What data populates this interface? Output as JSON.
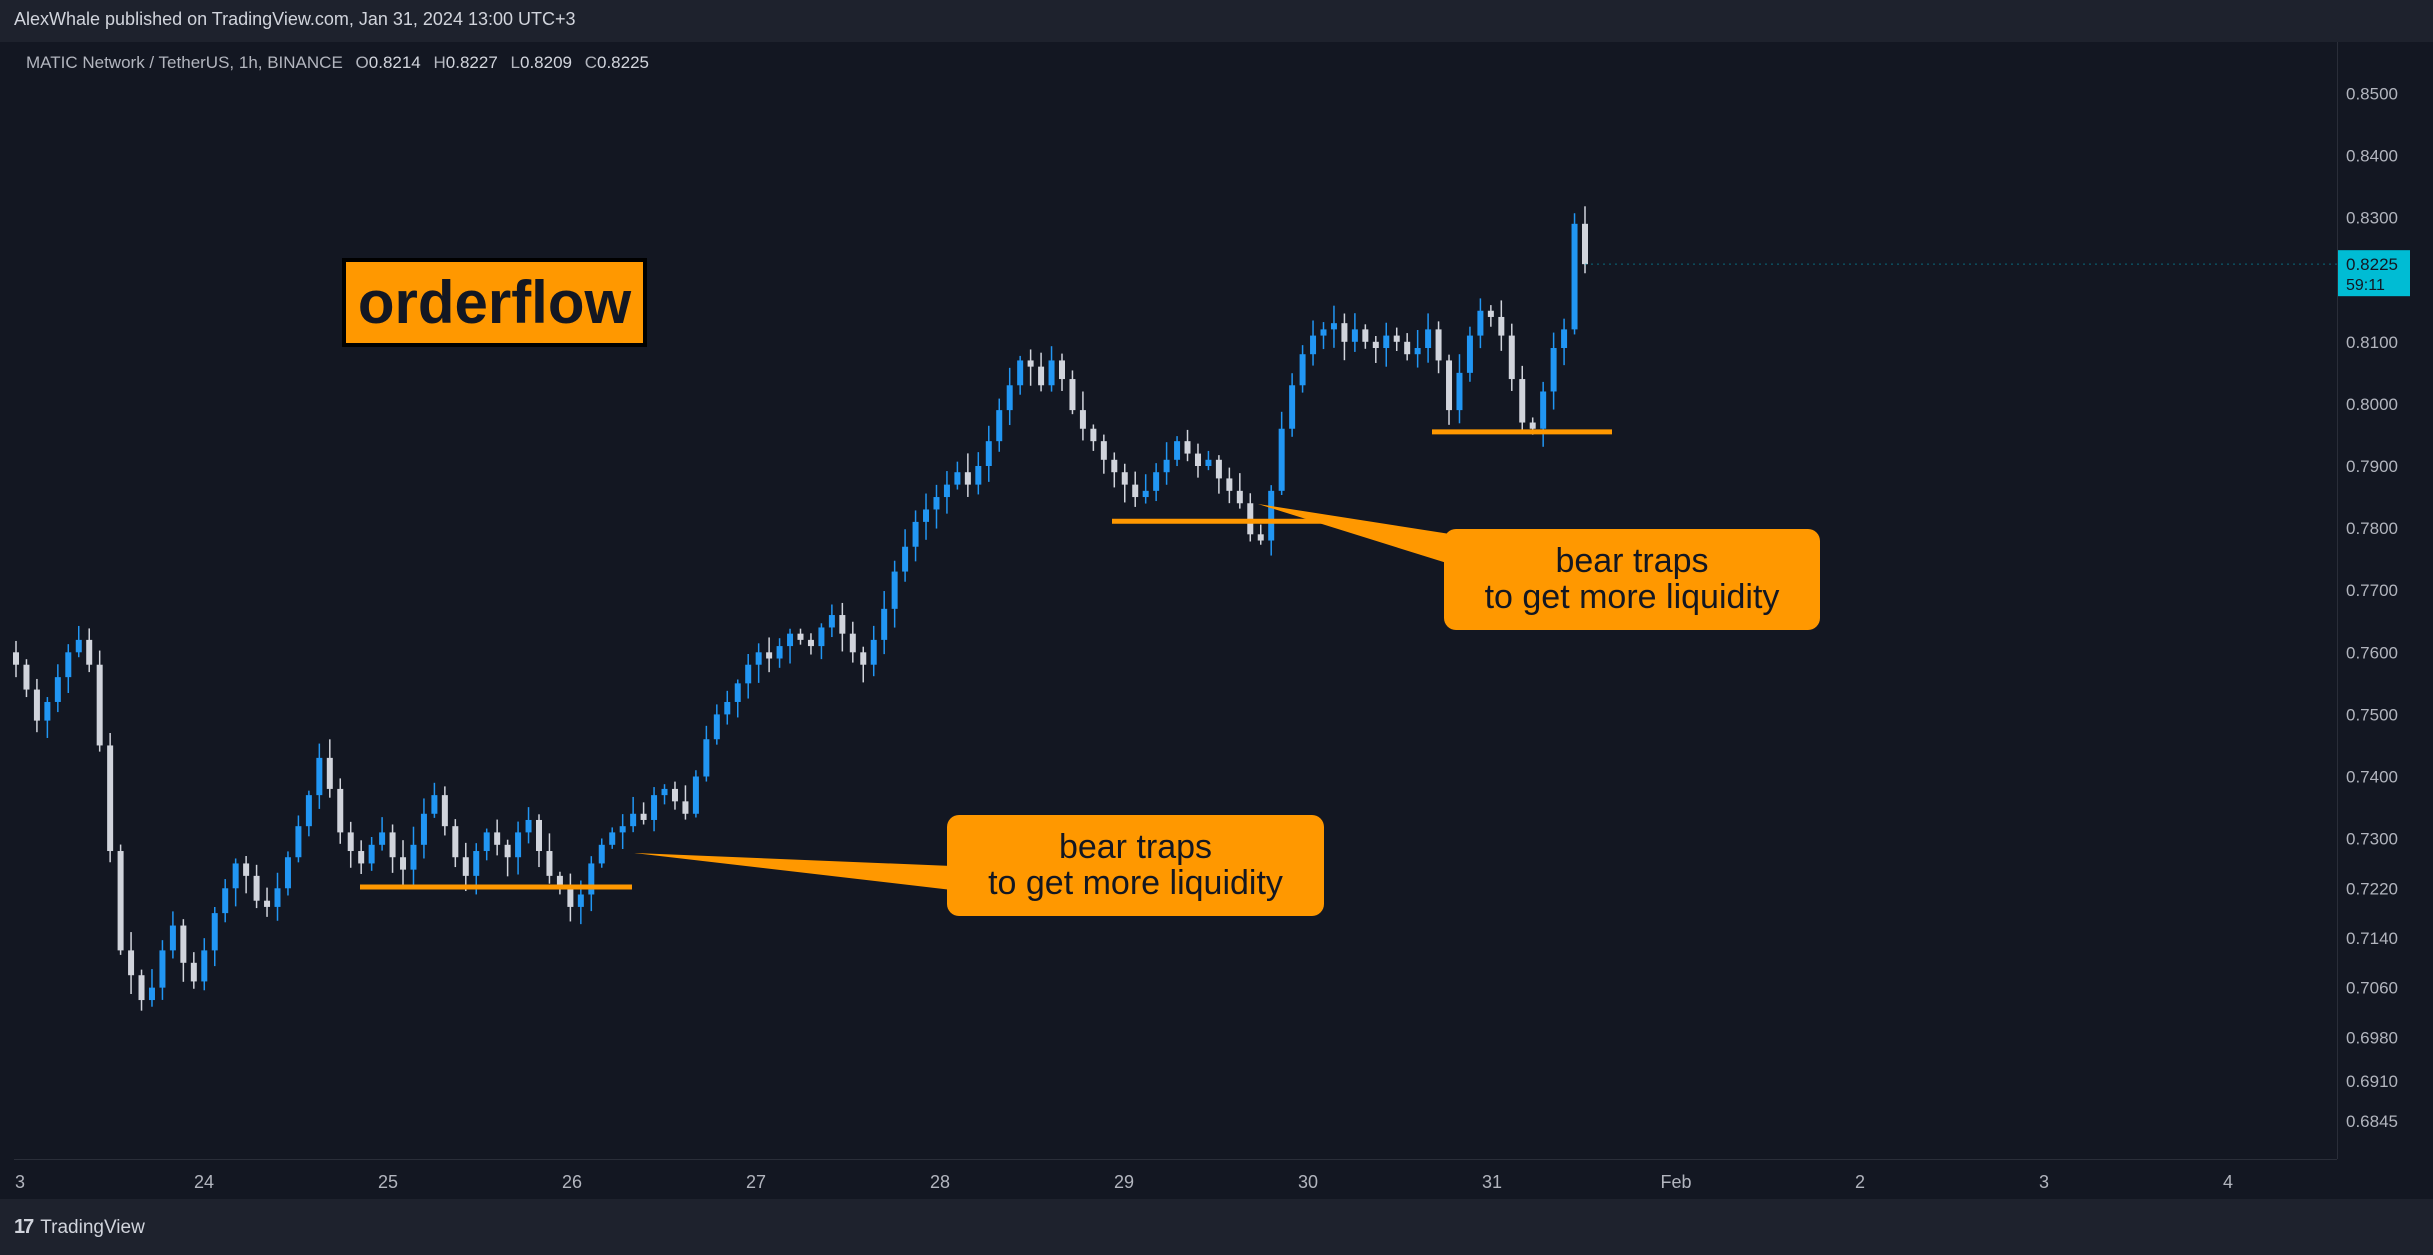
{
  "header": {
    "published_text": "AlexWhale published on TradingView.com, Jan 31, 2024 13:00 UTC+3"
  },
  "legend": {
    "symbol": "MATIC Network / TetherUS, 1h, BINANCE",
    "open_label": "O",
    "open": "0.8214",
    "high_label": "H",
    "high": "0.8227",
    "low_label": "L",
    "low": "0.8209",
    "close_label": "C",
    "close": "0.8225"
  },
  "annotations": {
    "title": "orderflow",
    "callout_1": [
      "bear traps",
      "to get more liquidity"
    ],
    "callout_2": [
      "bear traps",
      "to get more liquidity"
    ]
  },
  "price_axis": {
    "labels": [
      "0.8500",
      "0.8400",
      "0.8300",
      "0.8100",
      "0.8000",
      "0.7900",
      "0.7800",
      "0.7700",
      "0.7600",
      "0.7500",
      "0.7400",
      "0.7300",
      "0.7220",
      "0.7140",
      "0.7060",
      "0.6980",
      "0.6910",
      "0.6845"
    ],
    "current_price": "0.8225",
    "countdown": "59:11"
  },
  "time_axis": {
    "labels": [
      "3",
      "24",
      "25",
      "26",
      "27",
      "28",
      "29",
      "30",
      "31",
      "Feb",
      "2",
      "3",
      "4"
    ]
  },
  "footer": {
    "brand": "TradingView",
    "logo_mark": "17"
  },
  "colors": {
    "background": "#131722",
    "bull_candle": "#2196f3",
    "bear_candle": "#d1d4dc",
    "annotation": "#ff9800",
    "price_tag": "#00bcd4"
  },
  "chart_data": {
    "type": "candlestick",
    "title": "MATIC Network / TetherUS, 1h, BINANCE",
    "x_labels": [
      "3",
      "24",
      "25",
      "26",
      "27",
      "28",
      "29",
      "30",
      "31",
      "Feb",
      "2",
      "3",
      "4"
    ],
    "y_ticks": [
      0.85,
      0.84,
      0.83,
      0.81,
      0.8,
      0.79,
      0.78,
      0.77,
      0.76,
      0.75,
      0.74,
      0.73,
      0.722,
      0.714,
      0.706,
      0.698,
      0.691,
      0.6845
    ],
    "ylim": [
      0.6815,
      0.8515
    ],
    "last": {
      "open": 0.8214,
      "high": 0.8227,
      "low": 0.8209,
      "close": 0.8225
    },
    "path_closes": [
      0.758,
      0.754,
      0.749,
      0.752,
      0.756,
      0.76,
      0.762,
      0.758,
      0.745,
      0.728,
      0.712,
      0.708,
      0.704,
      0.706,
      0.712,
      0.716,
      0.71,
      0.707,
      0.712,
      0.718,
      0.722,
      0.726,
      0.724,
      0.72,
      0.719,
      0.722,
      0.727,
      0.732,
      0.737,
      0.743,
      0.738,
      0.731,
      0.728,
      0.726,
      0.729,
      0.731,
      0.727,
      0.725,
      0.729,
      0.734,
      0.737,
      0.732,
      0.727,
      0.724,
      0.728,
      0.731,
      0.729,
      0.727,
      0.731,
      0.733,
      0.728,
      0.724,
      0.722,
      0.719,
      0.721,
      0.726,
      0.729,
      0.731,
      0.732,
      0.734,
      0.733,
      0.737,
      0.738,
      0.736,
      0.734,
      0.74,
      0.746,
      0.75,
      0.752,
      0.755,
      0.758,
      0.76,
      0.759,
      0.761,
      0.763,
      0.762,
      0.761,
      0.764,
      0.766,
      0.763,
      0.76,
      0.758,
      0.762,
      0.767,
      0.773,
      0.777,
      0.781,
      0.783,
      0.785,
      0.787,
      0.789,
      0.787,
      0.79,
      0.794,
      0.799,
      0.803,
      0.807,
      0.806,
      0.803,
      0.807,
      0.804,
      0.799,
      0.796,
      0.794,
      0.791,
      0.789,
      0.787,
      0.785,
      0.786,
      0.789,
      0.791,
      0.794,
      0.792,
      0.79,
      0.791,
      0.788,
      0.786,
      0.784,
      0.779,
      0.778,
      0.786,
      0.796,
      0.803,
      0.808,
      0.811,
      0.812,
      0.813,
      0.81,
      0.812,
      0.81,
      0.809,
      0.811,
      0.81,
      0.808,
      0.809,
      0.812,
      0.807,
      0.799,
      0.805,
      0.811,
      0.815,
      0.814,
      0.811,
      0.804,
      0.797,
      0.796,
      0.802,
      0.809,
      0.812,
      0.829,
      0.8225
    ],
    "support_lines": [
      {
        "price": 0.7222,
        "from": "25",
        "to": "26"
      },
      {
        "price": 0.7811,
        "from": "29",
        "to": "30"
      },
      {
        "price": 0.7955,
        "from": "31",
        "to": "31"
      }
    ],
    "grid": false,
    "legend": "top-left"
  }
}
